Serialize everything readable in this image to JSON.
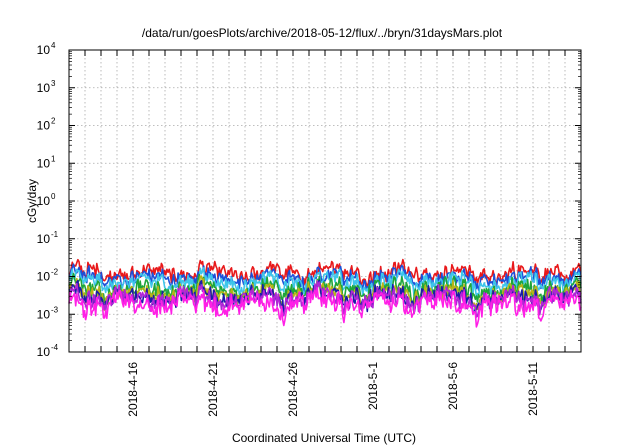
{
  "chart_data": {
    "type": "line",
    "title": "/data/run/goesPlots/archive/2018-05-12/flux/../bryn/31daysMars.plot",
    "xlabel": "Coordinated Universal Time (UTC)",
    "ylabel": "cGy/day",
    "yscale": "log",
    "ylim": [
      0.0001,
      10000
    ],
    "y_ticks": [
      {
        "base": "10",
        "exp": "-4",
        "value": 0.0001
      },
      {
        "base": "10",
        "exp": "-3",
        "value": 0.001
      },
      {
        "base": "10",
        "exp": "-2",
        "value": 0.01
      },
      {
        "base": "10",
        "exp": "-1",
        "value": 0.1
      },
      {
        "base": "10",
        "exp": "0",
        "value": 1
      },
      {
        "base": "10",
        "exp": "1",
        "value": 10
      },
      {
        "base": "10",
        "exp": "2",
        "value": 100
      },
      {
        "base": "10",
        "exp": "3",
        "value": 1000
      },
      {
        "base": "10",
        "exp": "4",
        "value": 10000
      }
    ],
    "xlim": [
      "2018-04-12",
      "2018-05-14"
    ],
    "x_ticks": [
      {
        "label": "2018-4-16",
        "date": "2018-04-16"
      },
      {
        "label": "2018-4-21",
        "date": "2018-04-21"
      },
      {
        "label": "2018-4-26",
        "date": "2018-04-26"
      },
      {
        "label": "2018-5-1",
        "date": "2018-05-01"
      },
      {
        "label": "2018-5-6",
        "date": "2018-05-06"
      },
      {
        "label": "2018-5-11",
        "date": "2018-05-11"
      }
    ],
    "grid": true,
    "series": [
      {
        "color": "#e8191b",
        "base": 0.0125,
        "amp": 1.35
      },
      {
        "color": "#1c4fd8",
        "base": 0.0092,
        "amp": 1.35
      },
      {
        "color": "#3ec6ea",
        "base": 0.0072,
        "amp": 1.4
      },
      {
        "color": "#1ea53a",
        "base": 0.0046,
        "amp": 1.5
      },
      {
        "color": "#b7b418",
        "base": 0.0034,
        "amp": 1.55
      },
      {
        "color": "#1b1ba8",
        "base": 0.0029,
        "amp": 1.6
      },
      {
        "color": "#b026d6",
        "base": 0.0026,
        "amp": 1.65
      },
      {
        "color": "#ff1fe6",
        "base": 0.0019,
        "amp": 1.85
      }
    ]
  }
}
